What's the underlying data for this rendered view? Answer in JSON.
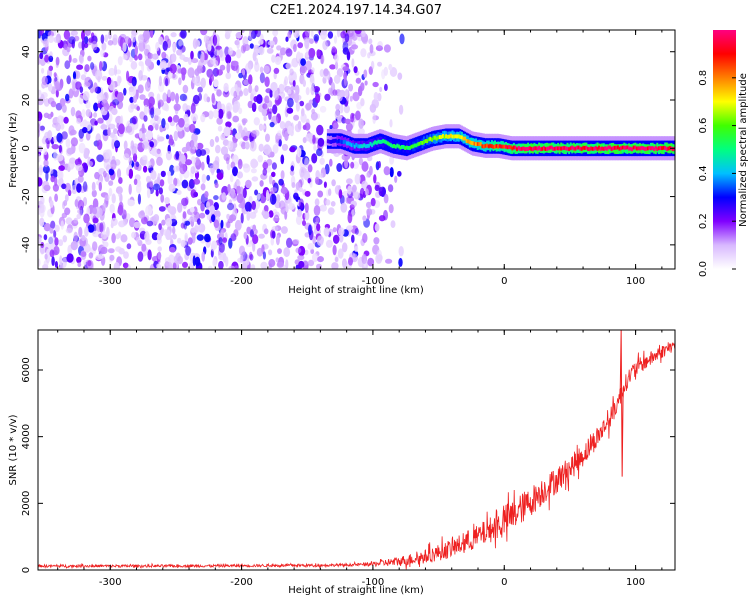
{
  "title": "C2E1.2024.197.14.34.G07",
  "chart_data": [
    {
      "type": "heatmap",
      "title": "C2E1.2024.197.14.34.G07",
      "xlabel": "Height of straight line (km)",
      "ylabel": "Frequency (Hz)",
      "xlim": [
        -355,
        130
      ],
      "ylim": [
        -50,
        49
      ],
      "x_ticks": [
        -300,
        -200,
        -100,
        0,
        100
      ],
      "y_ticks": [
        -40,
        -20,
        0,
        20,
        40
      ],
      "colorbar": {
        "label": "Normalized spectral amplitude",
        "range": [
          0,
          1
        ],
        "ticks": [
          0.0,
          0.2,
          0.4,
          0.6,
          0.8
        ],
        "colormap": [
          "#ffffff",
          "#d8b8ff",
          "#8000ff",
          "#0000ff",
          "#00c0ff",
          "#00ff80",
          "#40ff00",
          "#ffff00",
          "#ff8000",
          "#ff0000",
          "#ff0080"
        ]
      },
      "noise_region_x": [
        -355,
        -90
      ],
      "ridge": {
        "x": [
          -135,
          -125,
          -115,
          -105,
          -95,
          -85,
          -75,
          -65,
          -55,
          -45,
          -35,
          -25,
          -15,
          -5,
          5,
          20,
          40,
          60,
          80,
          100,
          130
        ],
        "y": [
          3,
          3,
          1,
          1,
          3,
          1,
          0,
          2,
          4,
          5,
          5,
          2,
          1,
          1,
          0,
          0,
          0,
          0,
          0,
          0,
          0
        ],
        "amplitude": [
          0.25,
          0.35,
          0.4,
          0.45,
          0.5,
          0.55,
          0.55,
          0.6,
          0.65,
          0.7,
          0.75,
          0.8,
          0.85,
          0.9,
          0.95,
          1,
          1,
          1,
          1,
          1,
          1
        ]
      }
    },
    {
      "type": "line",
      "xlabel": "Height of straight line (km)",
      "ylabel": "SNR (10 * v/v)",
      "xlim": [
        -355,
        130
      ],
      "ylim": [
        0,
        7200
      ],
      "x_ticks": [
        -300,
        -200,
        -100,
        0,
        100
      ],
      "y_ticks": [
        0,
        2000,
        4000,
        6000
      ],
      "color": "#ee2020",
      "series": [
        {
          "x": [
            -355,
            -300,
            -250,
            -200,
            -150,
            -120,
            -100,
            -80,
            -60,
            -40,
            -20,
            0,
            10,
            20,
            30,
            40,
            50,
            60,
            70,
            80,
            85,
            90,
            95,
            100,
            110,
            120,
            130
          ],
          "values": [
            120,
            120,
            120,
            130,
            140,
            150,
            180,
            260,
            400,
            650,
            1000,
            1450,
            1750,
            2050,
            2400,
            2700,
            3050,
            3450,
            3950,
            4500,
            4900,
            5400,
            5800,
            6050,
            6300,
            6550,
            6750
          ]
        }
      ],
      "spike": {
        "x": 89,
        "low": 2800,
        "high": 7200
      }
    }
  ]
}
